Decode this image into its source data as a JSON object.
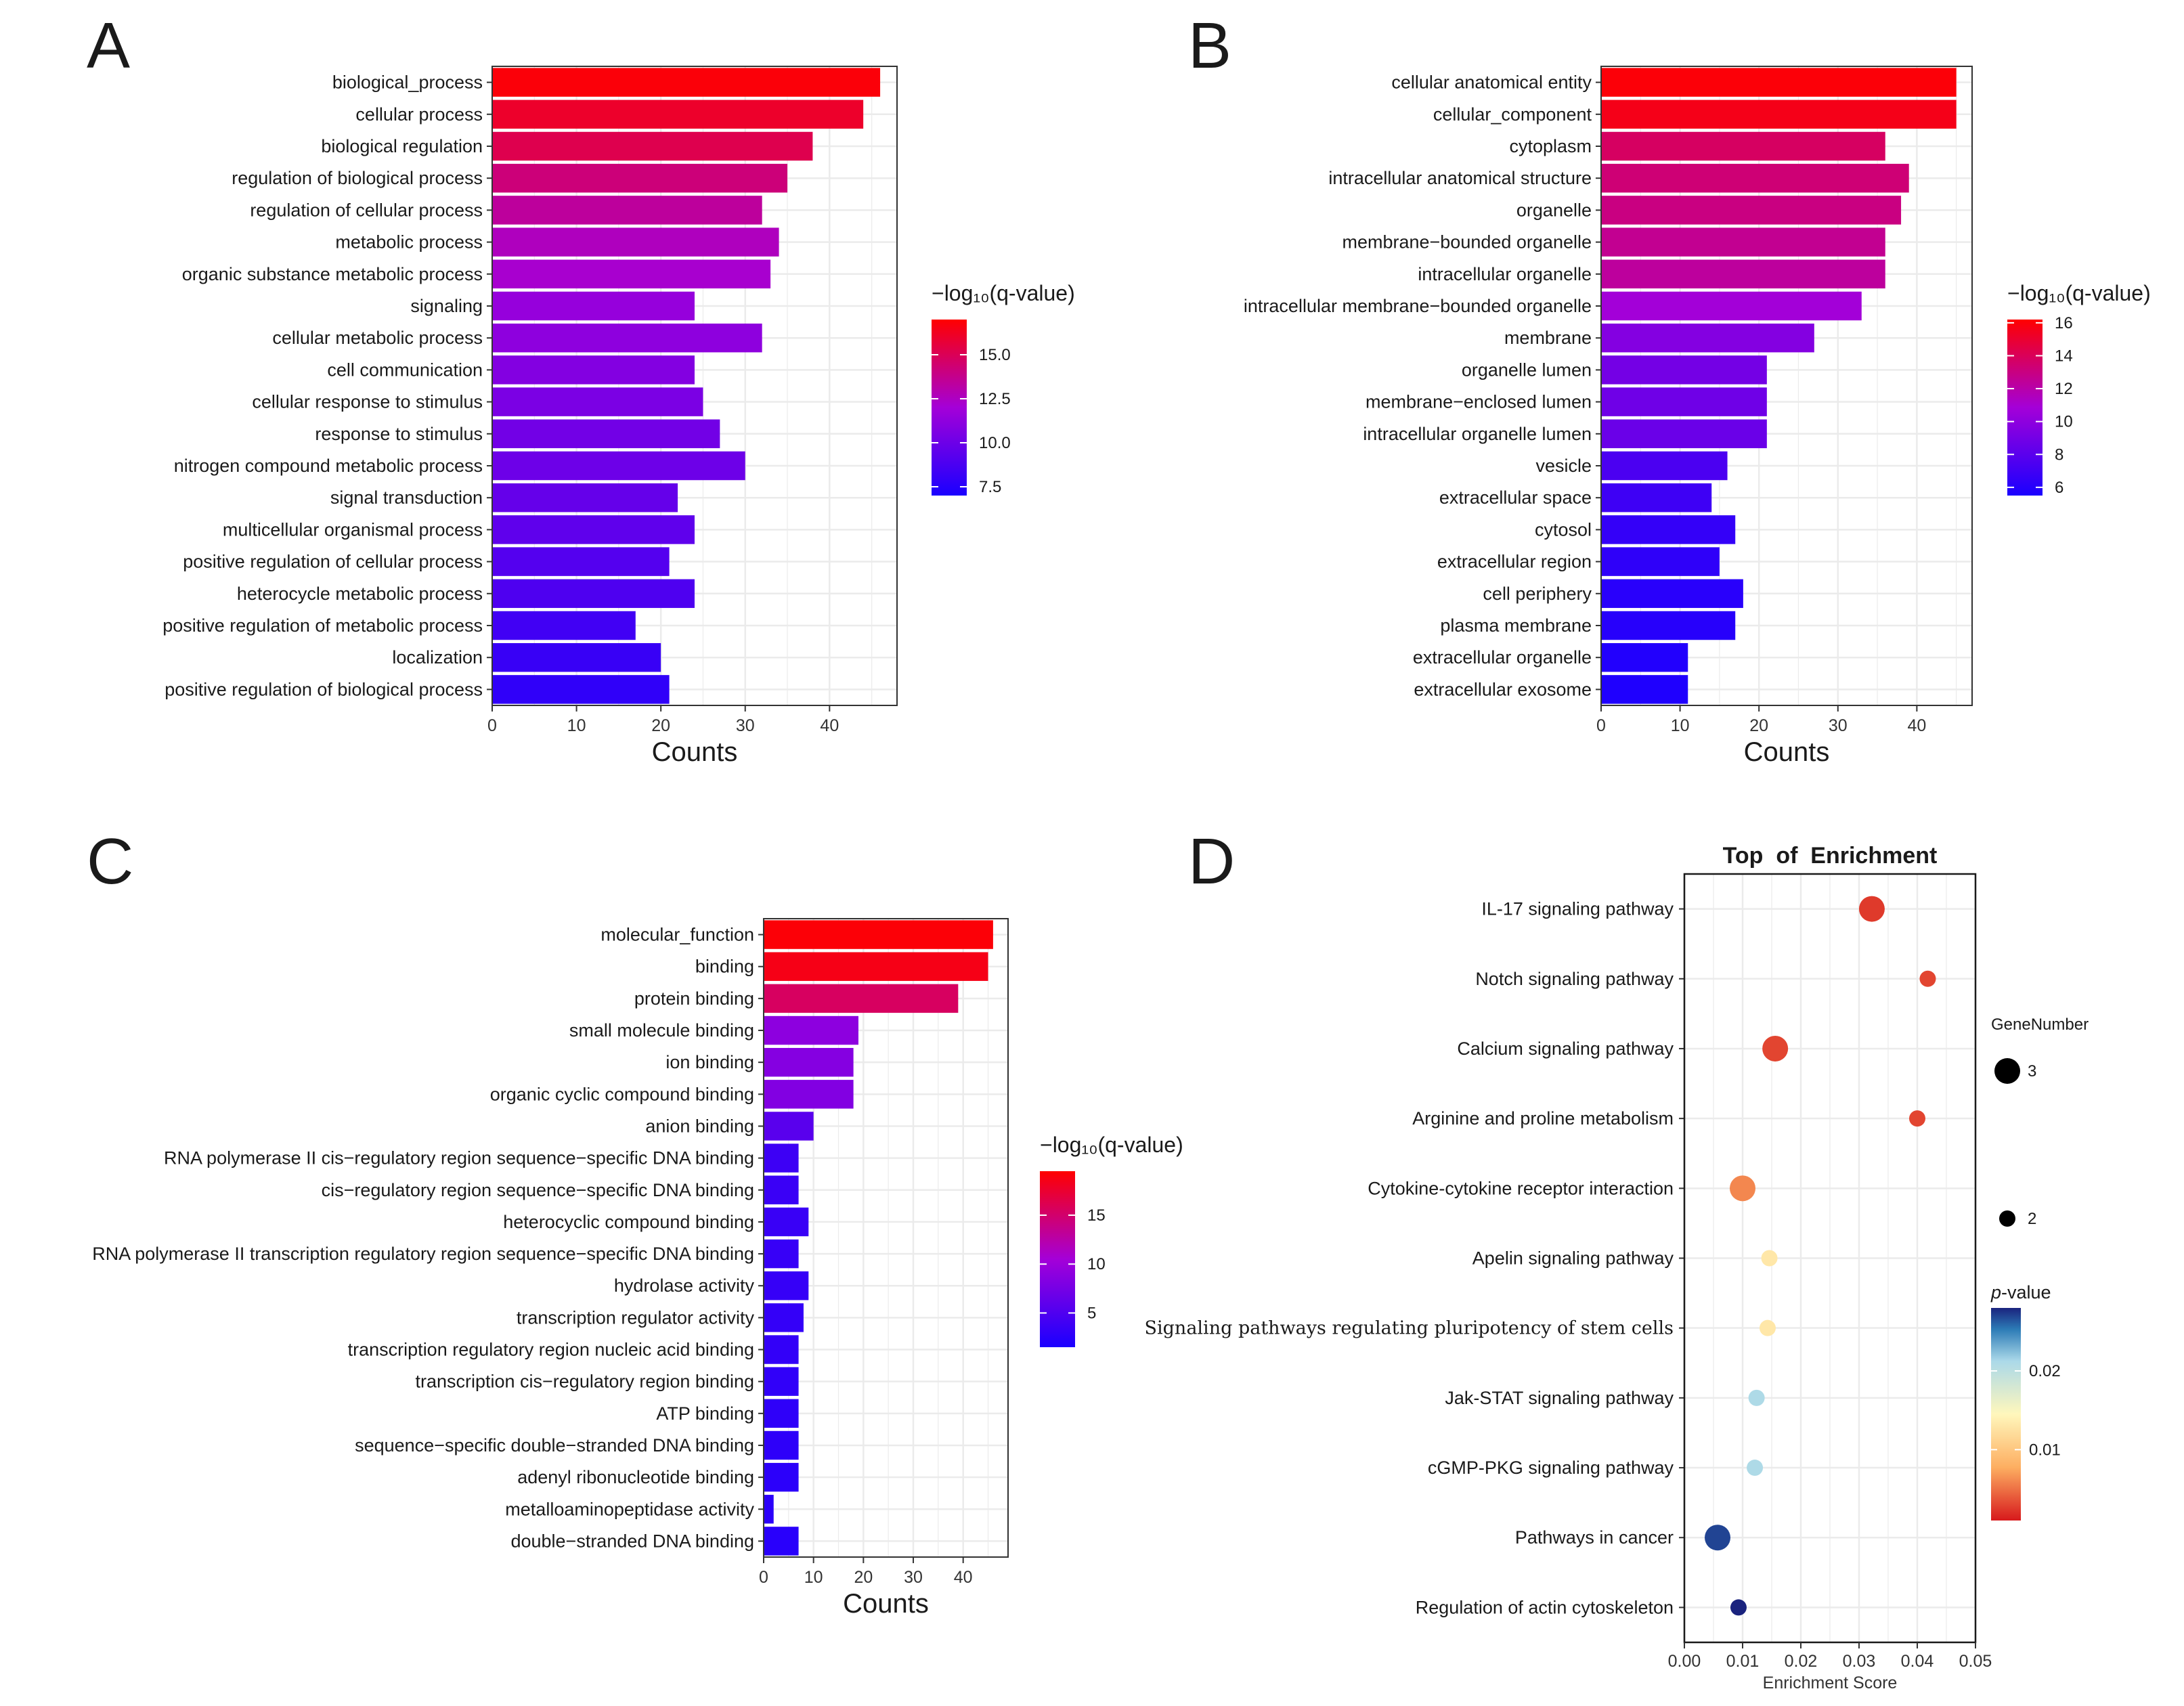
{
  "colors": {
    "bar_high": "#ff0000",
    "bar_mid": "#a400d8",
    "bar_low": "#1a00ff",
    "grid": "#ebebeb",
    "enrich_high": "#1a237e",
    "enrich_mid": "#fff7bc",
    "enrich_low": "#d7191c"
  },
  "chart_data": [
    {
      "panel": "A",
      "type": "bar",
      "orientation": "horizontal",
      "xlabel": "Counts",
      "xlim": [
        0,
        48
      ],
      "xticks": [
        0,
        10,
        20,
        30,
        40
      ],
      "legend_title": "−log₁₀(q-value)",
      "legend_range": [
        7,
        17
      ],
      "legend_ticks": [
        7.5,
        10.0,
        12.5,
        15.0
      ],
      "legend_tick_labels": [
        "7.5",
        "10.0",
        "12.5",
        "15.0"
      ],
      "categories": [
        "biological_process",
        "cellular process",
        "biological regulation",
        "regulation of biological process",
        "regulation of cellular process",
        "metabolic process",
        "organic substance metabolic process",
        "signaling",
        "cellular metabolic process",
        "cell communication",
        "cellular response to stimulus",
        "response to stimulus",
        "nitrogen compound metabolic process",
        "signal transduction",
        "multicellular organismal process",
        "positive regulation of cellular process",
        "heterocycle metabolic process",
        "positive regulation of metabolic process",
        "localization",
        "positive regulation of biological process"
      ],
      "values": [
        46,
        44,
        38,
        35,
        32,
        34,
        33,
        24,
        32,
        24,
        25,
        27,
        30,
        22,
        24,
        21,
        24,
        17,
        20,
        21
      ],
      "colorvalue": [
        16.8,
        16.0,
        15.2,
        14.2,
        13.4,
        12.6,
        12.2,
        11.5,
        11.2,
        10.8,
        10.5,
        10.2,
        10.0,
        9.7,
        9.5,
        9.1,
        8.9,
        8.4,
        8.1,
        7.8
      ]
    },
    {
      "panel": "B",
      "type": "bar",
      "orientation": "horizontal",
      "xlabel": "Counts",
      "xlim": [
        0,
        47
      ],
      "xticks": [
        0,
        10,
        20,
        30,
        40
      ],
      "legend_title": "−log₁₀(q-value)",
      "legend_range": [
        5.5,
        16.2
      ],
      "legend_ticks": [
        6,
        8,
        10,
        12,
        14,
        16
      ],
      "legend_tick_labels": [
        "6",
        "8",
        "10",
        "12",
        "14",
        "16"
      ],
      "categories": [
        "cellular anatomical entity",
        "cellular_component",
        "cytoplasm",
        "intracellular anatomical structure",
        "organelle",
        "membrane−bounded organelle",
        "intracellular organelle",
        "intracellular membrane−bounded organelle",
        "membrane",
        "organelle lumen",
        "membrane−enclosed lumen",
        "intracellular organelle lumen",
        "vesicle",
        "extracellular space",
        "cytosol",
        "extracellular region",
        "cell periphery",
        "plasma membrane",
        "extracellular organelle",
        "extracellular exosome"
      ],
      "values": [
        45,
        45,
        36,
        39,
        38,
        36,
        36,
        33,
        27,
        21,
        21,
        21,
        16,
        14,
        17,
        15,
        18,
        17,
        11,
        11
      ],
      "colorvalue": [
        16.0,
        15.6,
        13.8,
        13.3,
        13.0,
        12.6,
        12.3,
        10.8,
        9.6,
        9.0,
        8.8,
        8.6,
        7.4,
        6.9,
        6.5,
        6.3,
        6.1,
        6.0,
        5.8,
        5.7
      ]
    },
    {
      "panel": "C",
      "type": "bar",
      "orientation": "horizontal",
      "xlabel": "Counts",
      "xlim": [
        0,
        49
      ],
      "xticks": [
        0,
        10,
        20,
        30,
        40
      ],
      "legend_title": "−log₁₀(q-value)",
      "legend_range": [
        1.5,
        19.5
      ],
      "legend_ticks": [
        5,
        10,
        15
      ],
      "legend_tick_labels": [
        "5",
        "10",
        "15"
      ],
      "categories": [
        "molecular_function",
        "binding",
        "protein binding",
        "small molecule binding",
        "ion binding",
        "organic cyclic compound binding",
        "anion binding",
        "RNA polymerase II cis−regulatory region sequence−specific DNA binding",
        "cis−regulatory region sequence−specific DNA binding",
        "heterocyclic compound binding",
        "RNA polymerase II transcription regulatory region sequence−specific DNA binding",
        "hydrolase activity",
        "transcription regulator activity",
        "transcription regulatory region nucleic acid binding",
        "transcription cis−regulatory region binding",
        "ATP binding",
        "sequence−specific double−stranded DNA binding",
        "adenyl ribonucleotide binding",
        "metalloaminopeptidase activity",
        "double−stranded DNA binding"
      ],
      "values": [
        46,
        45,
        39,
        19,
        18,
        18,
        10,
        7,
        7,
        9,
        7,
        9,
        8,
        7,
        7,
        7,
        7,
        7,
        2,
        7
      ],
      "colorvalue": [
        19.2,
        18.6,
        15.5,
        9.0,
        8.5,
        8.3,
        5.6,
        3.8,
        3.6,
        3.5,
        3.4,
        3.3,
        3.2,
        3.1,
        3.0,
        2.9,
        2.8,
        2.7,
        2.6,
        2.5
      ]
    },
    {
      "panel": "D",
      "type": "scatter",
      "title": "Top  of  Enrichment",
      "xlabel": "Enrichment Score",
      "xlim": [
        0.0,
        0.05
      ],
      "xticks": [
        0.0,
        0.01,
        0.02,
        0.03,
        0.04,
        0.05
      ],
      "xtick_labels": [
        "0.00",
        "0.01",
        "0.02",
        "0.03",
        "0.04",
        "0.05"
      ],
      "size_legend_title": "GeneNumber",
      "size_legend": [
        3,
        2
      ],
      "size_legend_labels": [
        "3",
        "2"
      ],
      "color_legend_title": "p-value",
      "color_legend_prefix": "p",
      "color_legend_suffix": "-value",
      "color_range": [
        0.001,
        0.028
      ],
      "color_ticks": [
        0.01,
        0.02
      ],
      "color_tick_labels": [
        "0.01",
        "0.02"
      ],
      "categories": [
        "IL-17 signaling pathway",
        "Notch signaling pathway",
        "Calcium signaling pathway",
        "Arginine and proline metabolism",
        "Cytokine-cytokine receptor interaction",
        "Apelin signaling pathway",
        "Signaling pathways regulating pluripotency of stem cells",
        "Jak-STAT signaling pathway",
        "cGMP-PKG signaling pathway",
        "Pathways in cancer",
        "Regulation of actin cytoskeleton"
      ],
      "x": [
        0.0322,
        0.0418,
        0.0156,
        0.04,
        0.01,
        0.0146,
        0.0143,
        0.0124,
        0.0121,
        0.0057,
        0.0093
      ],
      "size": [
        3.0,
        2.0,
        3.0,
        2.0,
        3.0,
        2.0,
        2.0,
        2.0,
        2.0,
        3.0,
        2.0
      ],
      "pvalue": [
        0.0025,
        0.003,
        0.003,
        0.003,
        0.006,
        0.013,
        0.013,
        0.021,
        0.021,
        0.027,
        0.028
      ]
    }
  ]
}
